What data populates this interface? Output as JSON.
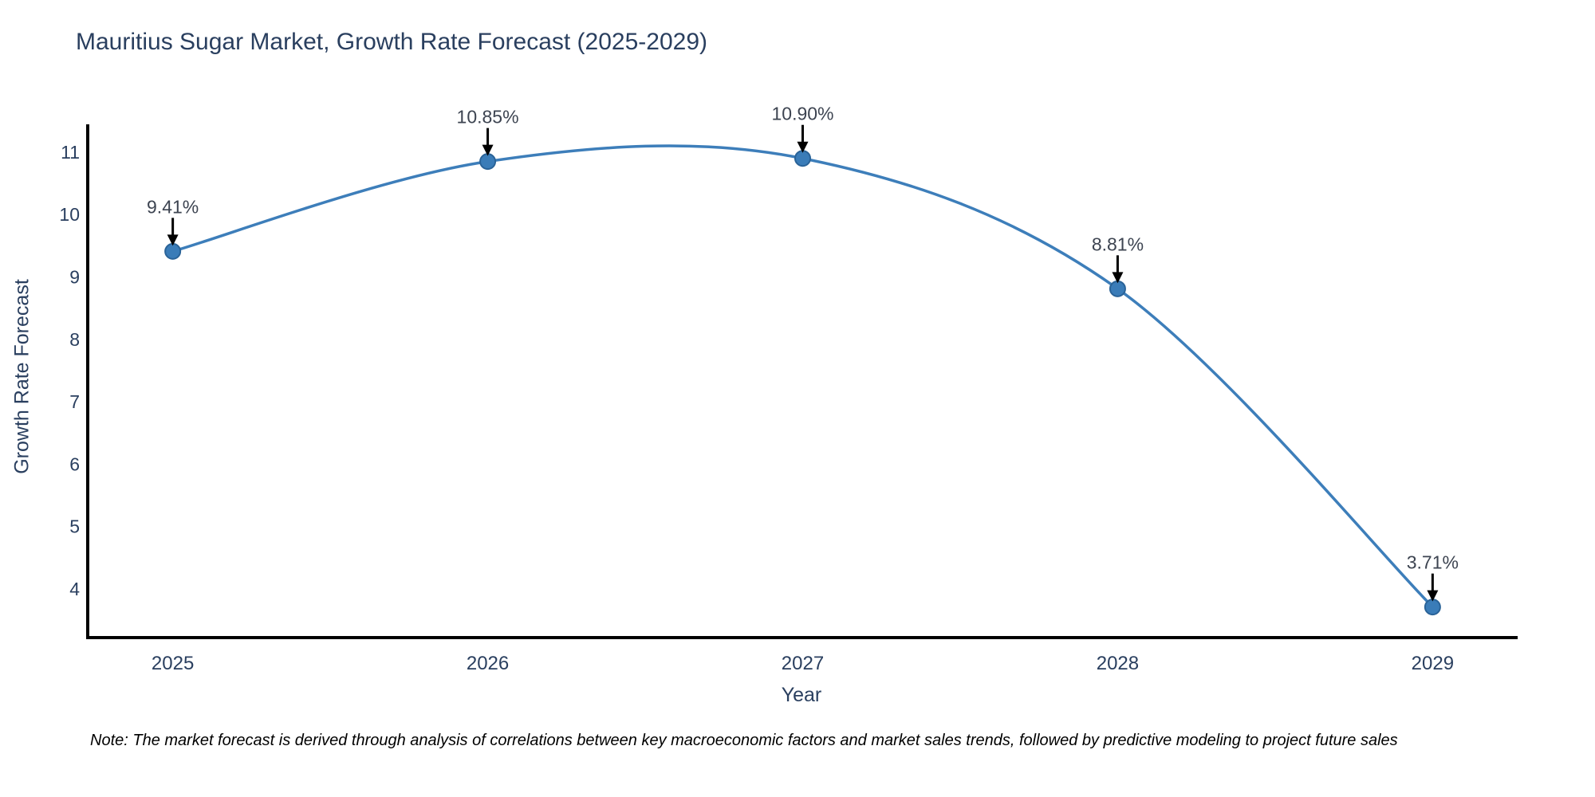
{
  "chart_data": {
    "type": "line",
    "title": "Mauritius Sugar Market, Growth Rate Forecast (2025-2029)",
    "xlabel": "Year",
    "ylabel": "Growth Rate Forecast",
    "x": [
      2025,
      2026,
      2027,
      2028,
      2029
    ],
    "series": [
      {
        "name": "Growth Rate Forecast",
        "values": [
          9.41,
          10.85,
          10.9,
          8.81,
          3.71
        ]
      }
    ],
    "point_labels": [
      "9.41%",
      "10.85%",
      "10.90%",
      "8.81%",
      "3.71%"
    ],
    "yticks": [
      4,
      5,
      6,
      7,
      8,
      9,
      10,
      11
    ],
    "xlim": [
      2024.73,
      2029.27
    ],
    "ylim": [
      3.22,
      11.42
    ],
    "grid": false,
    "legend_position": "none",
    "line_shape": "spline",
    "colors": {
      "line": "#3d7eba",
      "marker_fill": "#3a7cb8",
      "marker_edge": "#2a6398",
      "axis": "#000000",
      "tick_text": "#2a3f5f",
      "annotation_text": "#3d4451",
      "annotation_arrow": "#000000",
      "background": "#ffffff"
    }
  },
  "note": {
    "text": "Note: The market forecast is derived through analysis of correlations between key macroeconomic factors and market sales trends, followed by predictive modeling to project future sales"
  }
}
